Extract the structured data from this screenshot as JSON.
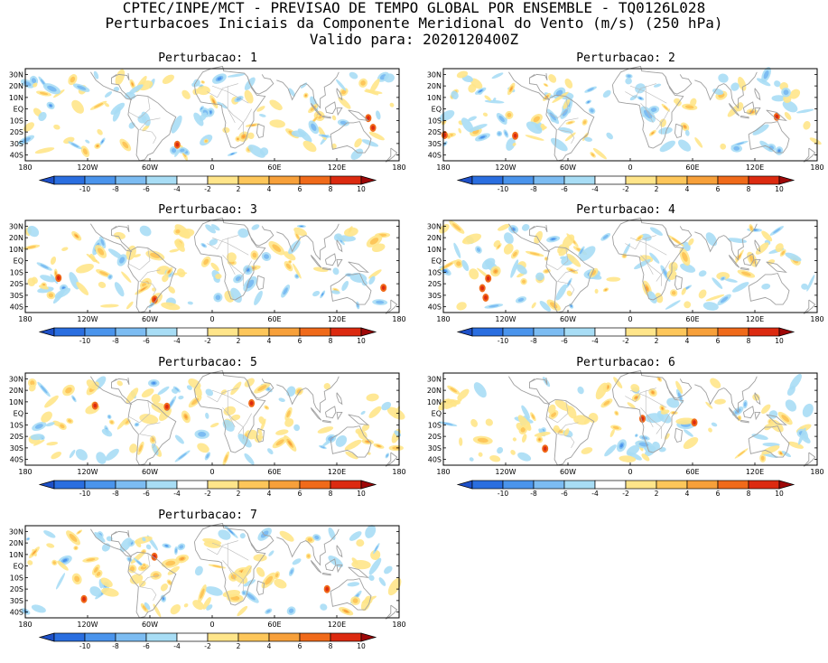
{
  "header": {
    "line1": "CPTEC/INPE/MCT - PREVISAO DE TEMPO GLOBAL POR ENSEMBLE - TQ0126L028",
    "line2": "Perturbacoes Iniciais da Componente Meridional do Vento (m/s) (250 hPa)",
    "line3": "Valido para: 2020120400Z"
  },
  "lat_labels": [
    "30N",
    "20N",
    "10N",
    "EQ",
    "10S",
    "20S",
    "30S",
    "40S"
  ],
  "lon_labels": [
    "180",
    "120W",
    "60W",
    "0",
    "60E",
    "120E",
    "180"
  ],
  "colorbar": {
    "ticks": [
      "-10",
      "-8",
      "-6",
      "-4",
      "-2",
      "2",
      "4",
      "6",
      "8",
      "10"
    ],
    "colors": [
      "#1e50c8",
      "#2a6ee0",
      "#4a94ec",
      "#7cbcf2",
      "#a8ddf5",
      "#ffffff",
      "#ffe58a",
      "#fdc65a",
      "#f7a03a",
      "#f06a1a",
      "#dc2a10",
      "#9e0808"
    ]
  },
  "panels": [
    {
      "title": "Perturbacao: 1",
      "seed": 11
    },
    {
      "title": "Perturbacao: 2",
      "seed": 23
    },
    {
      "title": "Perturbacao: 3",
      "seed": 37
    },
    {
      "title": "Perturbacao: 4",
      "seed": 41
    },
    {
      "title": "Perturbacao: 5",
      "seed": 53
    },
    {
      "title": "Perturbacao: 6",
      "seed": 67
    },
    {
      "title": "Perturbacao: 7",
      "seed": 79
    }
  ]
}
